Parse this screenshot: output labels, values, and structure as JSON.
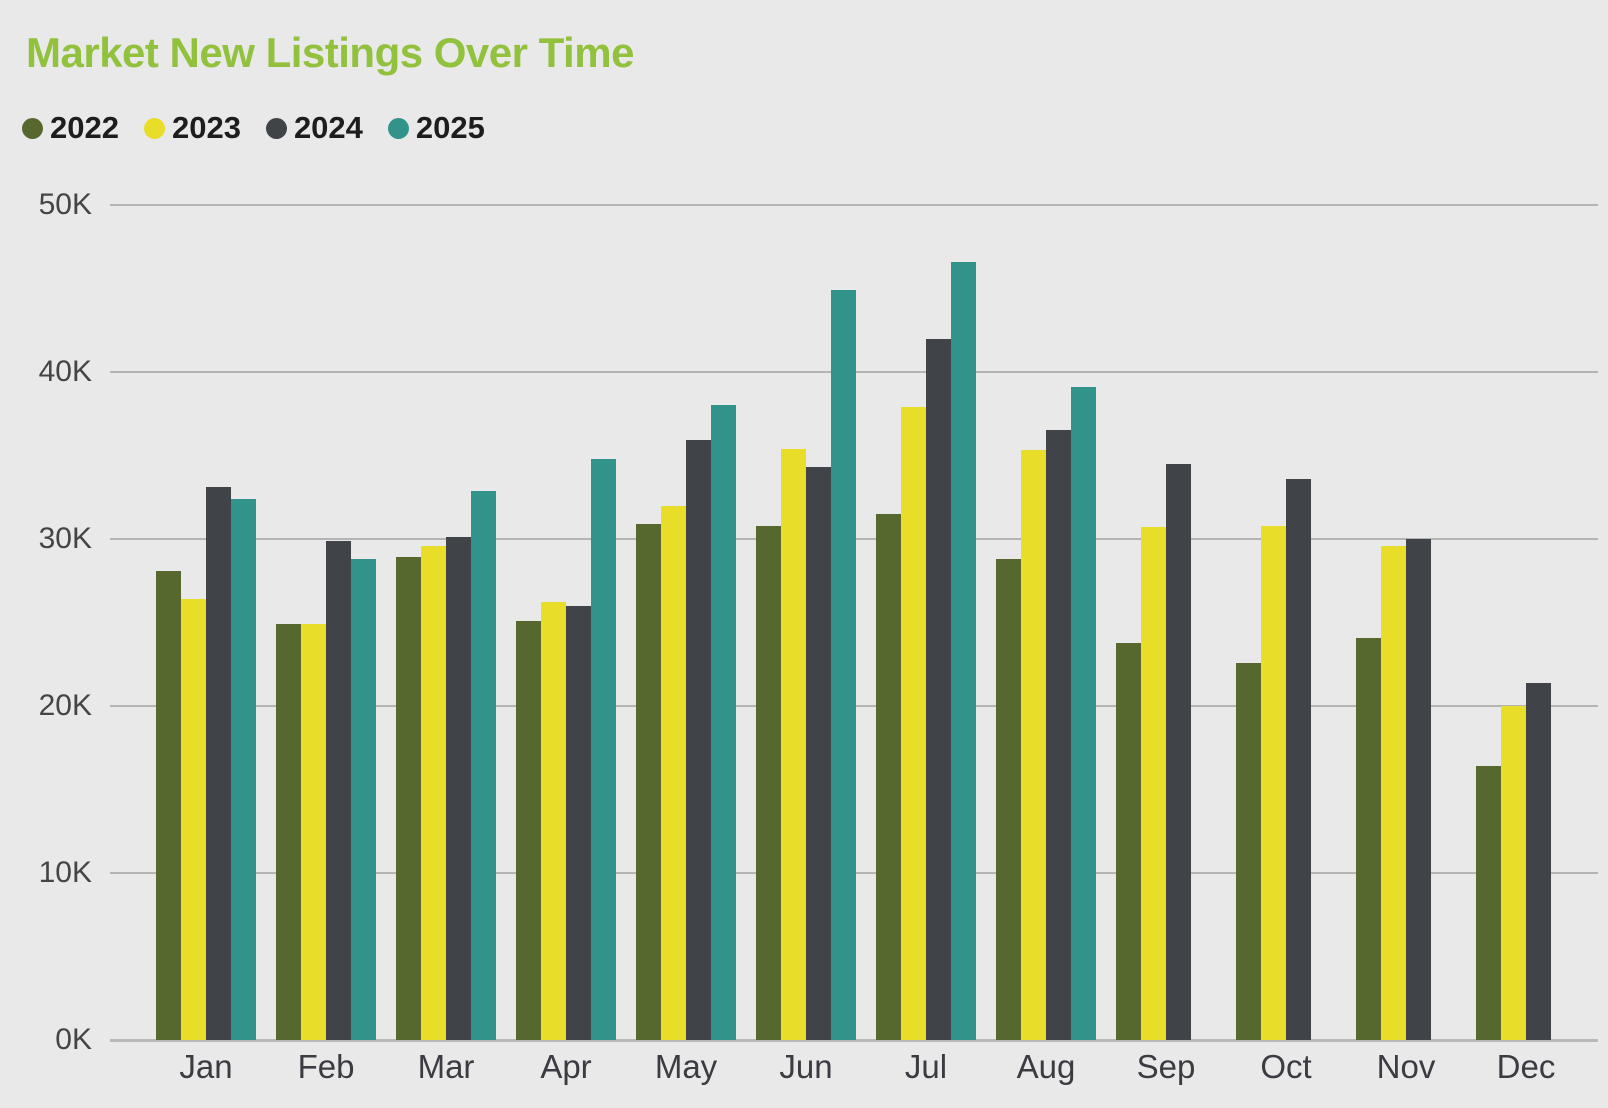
{
  "title": "Market New Listings Over Time",
  "title_color": "#92c13d",
  "background_color": "#e9e9e9",
  "legend": {
    "position": "top-left",
    "items": [
      {
        "label": "2022",
        "color": "#57682f"
      },
      {
        "label": "2023",
        "color": "#e8de2a"
      },
      {
        "label": "2024",
        "color": "#404347"
      },
      {
        "label": "2025",
        "color": "#32938b"
      }
    ]
  },
  "chart_data": {
    "type": "bar",
    "title": "Market New Listings Over Time",
    "xlabel": "",
    "ylabel": "",
    "units": "thousands of listings (K)",
    "ylim": [
      0,
      50
    ],
    "yticks": [
      "0K",
      "10K",
      "20K",
      "30K",
      "40K",
      "50K"
    ],
    "grid": true,
    "legend_position": "top-left",
    "categories": [
      "Jan",
      "Feb",
      "Mar",
      "Apr",
      "May",
      "Jun",
      "Jul",
      "Aug",
      "Sep",
      "Oct",
      "Nov",
      "Dec"
    ],
    "series": [
      {
        "name": "2022",
        "color": "#57682f",
        "values": [
          28.1,
          24.9,
          28.9,
          25.1,
          30.9,
          30.8,
          31.5,
          28.8,
          23.8,
          22.6,
          24.1,
          16.4
        ]
      },
      {
        "name": "2023",
        "color": "#e8de2a",
        "values": [
          26.4,
          24.9,
          29.6,
          26.2,
          32.0,
          35.4,
          37.9,
          35.3,
          30.7,
          30.8,
          29.6,
          20.0
        ]
      },
      {
        "name": "2024",
        "color": "#404347",
        "values": [
          33.1,
          29.9,
          30.1,
          26.0,
          35.9,
          34.3,
          42.0,
          36.5,
          34.5,
          33.6,
          30.0,
          21.4
        ]
      },
      {
        "name": "2025",
        "color": "#32938b",
        "values": [
          32.4,
          28.8,
          32.9,
          34.8,
          38.0,
          44.9,
          46.6,
          39.1,
          null,
          null,
          null,
          null
        ]
      }
    ]
  }
}
